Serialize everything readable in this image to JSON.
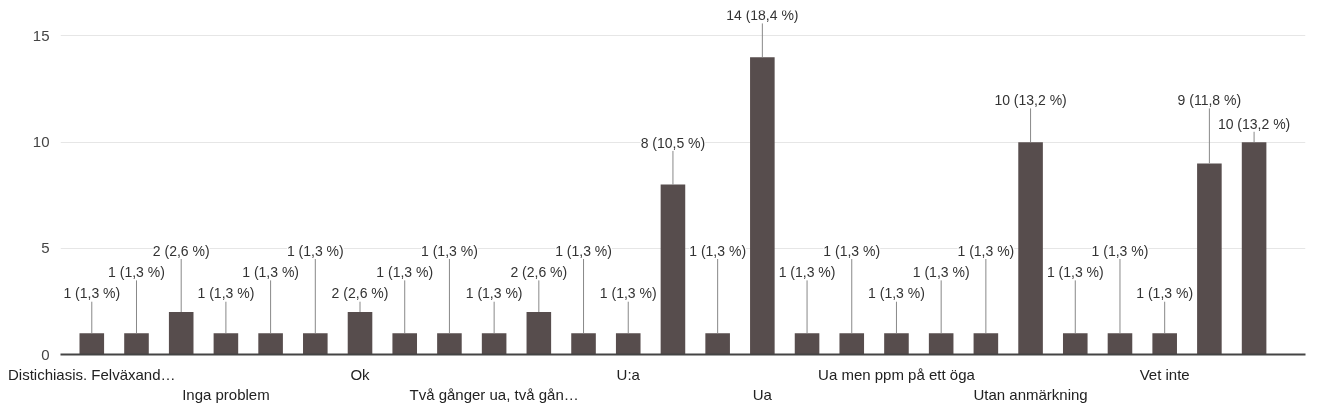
{
  "chart_data": {
    "type": "bar",
    "categories": [
      "Distichiasis. Felväxand…",
      null,
      null,
      "Inga problem",
      null,
      null,
      "Ok",
      null,
      null,
      "Två gånger ua, två gån…",
      null,
      null,
      "U:a",
      null,
      null,
      "Ua",
      null,
      null,
      "Ua men ppm på ett öga",
      null,
      null,
      "Utan anmärkning",
      null,
      null,
      "Vet inte",
      null,
      null
    ],
    "values": [
      1,
      1,
      2,
      1,
      1,
      1,
      2,
      1,
      1,
      1,
      2,
      1,
      1,
      8,
      1,
      14,
      1,
      1,
      1,
      1,
      1,
      10,
      1,
      1,
      1,
      9,
      10
    ],
    "value_labels": [
      "1 (1,3 %)",
      "1 (1,3 %)",
      "2 (2,6 %)",
      "1 (1,3 %)",
      "1 (1,3 %)",
      "1 (1,3 %)",
      "2 (2,6 %)",
      "1 (1,3 %)",
      "1 (1,3 %)",
      "1 (1,3 %)",
      "2 (2,6 %)",
      "1 (1,3 %)",
      "1 (1,3 %)",
      "8 (10,5 %)",
      "1 (1,3 %)",
      "14 (18,4 %)",
      "1 (1,3 %)",
      "1 (1,3 %)",
      "1 (1,3 %)",
      "1 (1,3 %)",
      "1 (1,3 %)",
      "10 (13,2 %)",
      "1 (1,3 %)",
      "1 (1,3 %)",
      "1 (1,3 %)",
      "9 (11,8 %)",
      "10 (13,2 %)"
    ],
    "color": "#574d4d",
    "ylim": [
      0,
      15
    ],
    "yticks": [
      0,
      5,
      10,
      15
    ],
    "grid": "y"
  }
}
